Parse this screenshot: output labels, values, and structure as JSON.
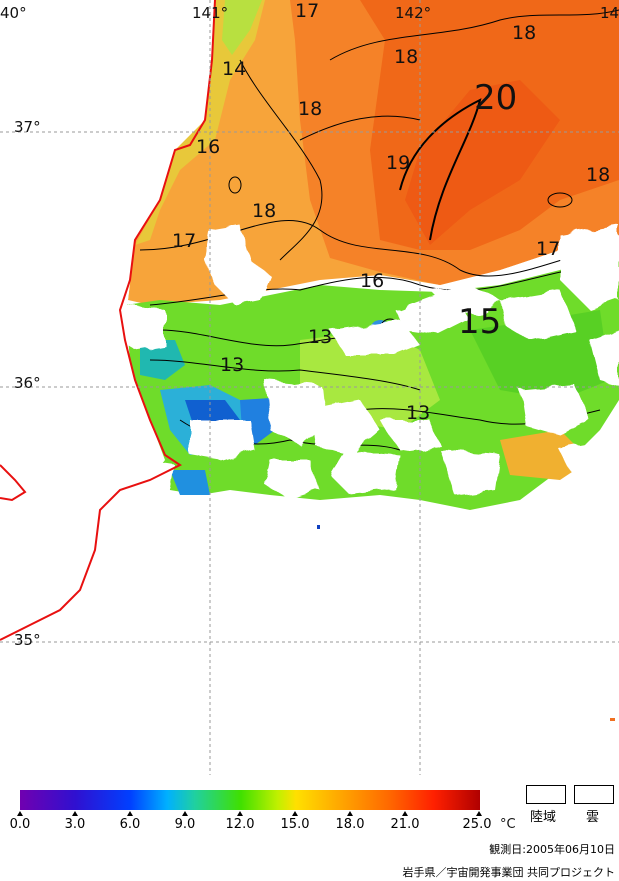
{
  "map": {
    "lon_labels": [
      "40°",
      "141°",
      "142°",
      "14"
    ],
    "lat_labels": [
      "37°",
      "36°",
      "35°"
    ],
    "contour_labels": [
      {
        "text": "17",
        "big": false
      },
      {
        "text": "18",
        "big": false
      },
      {
        "text": "14",
        "big": false
      },
      {
        "text": "18",
        "big": false
      },
      {
        "text": "18",
        "big": false
      },
      {
        "text": "20",
        "big": true
      },
      {
        "text": "16",
        "big": false
      },
      {
        "text": "19",
        "big": false
      },
      {
        "text": "18",
        "big": false
      },
      {
        "text": "18",
        "big": false
      },
      {
        "text": "17",
        "big": false
      },
      {
        "text": "17",
        "big": false
      },
      {
        "text": "16",
        "big": false
      },
      {
        "text": "15",
        "big": true
      },
      {
        "text": "13",
        "big": false
      },
      {
        "text": "13",
        "big": false
      },
      {
        "text": "13",
        "big": false
      }
    ]
  },
  "legend": {
    "ticks": [
      "0.0",
      "3.0",
      "6.0",
      "9.0",
      "12.0",
      "15.0",
      "18.0",
      "21.0",
      "25.0"
    ],
    "unit": "°C",
    "gradient_colors": [
      "#7000b0",
      "#0040ff",
      "#00b0ff",
      "#40e000",
      "#ffe000",
      "#ff6a00",
      "#b00000"
    ],
    "land_label": "陸域",
    "cloud_label": "雲"
  },
  "footer": {
    "observation_date": "観測日:2005年06月10日",
    "credit": "岩手県／宇宙開発事業団 共同プロジェクト"
  }
}
